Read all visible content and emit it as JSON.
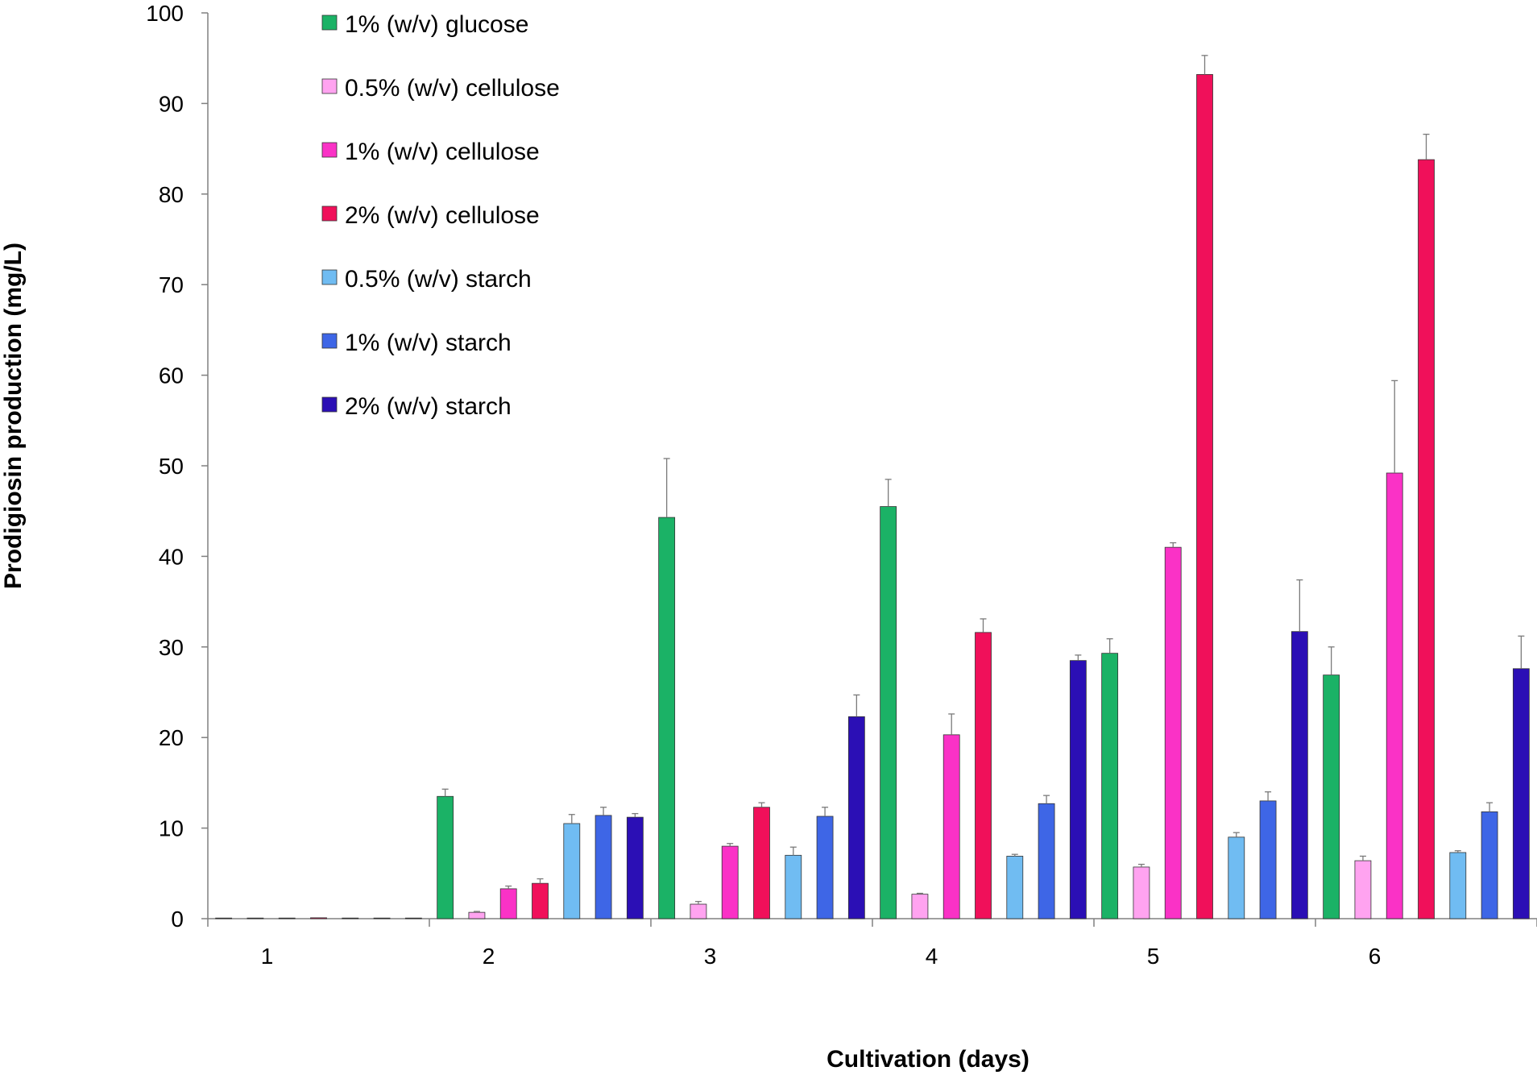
{
  "chart_data": {
    "type": "bar",
    "title": "",
    "xlabel": "Cultivation (days)",
    "ylabel": "Prodigiosin production (mg/L)",
    "ylim": [
      0,
      100
    ],
    "yticks": [
      0,
      10,
      20,
      30,
      40,
      50,
      60,
      70,
      80,
      90,
      100
    ],
    "categories": [
      "1",
      "2",
      "3",
      "4",
      "5",
      "6"
    ],
    "grid": false,
    "legend_position": "top-left",
    "series": [
      {
        "name": "1% (w/v) glucose",
        "color": "#1BB266",
        "values": [
          0,
          13.5,
          44.3,
          45.5,
          29.3,
          26.9
        ],
        "errors": [
          0,
          0.8,
          6.5,
          3.0,
          1.6,
          3.1
        ]
      },
      {
        "name": "0.5% (w/v) cellulose",
        "color": "#FFA3F0",
        "values": [
          0,
          0.7,
          1.6,
          2.7,
          5.7,
          6.4
        ],
        "errors": [
          0,
          0.1,
          0.3,
          0.1,
          0.3,
          0.5
        ]
      },
      {
        "name": "1% (w/v) cellulose",
        "color": "#FA32C6",
        "values": [
          0,
          3.3,
          8.0,
          20.3,
          41.0,
          49.2
        ],
        "errors": [
          0,
          0.3,
          0.3,
          2.3,
          0.5,
          10.2
        ]
      },
      {
        "name": "2% (w/v) cellulose",
        "color": "#F0105A",
        "values": [
          0.1,
          3.9,
          12.3,
          31.6,
          93.2,
          83.8
        ],
        "errors": [
          0,
          0.5,
          0.5,
          1.5,
          2.1,
          2.8
        ]
      },
      {
        "name": "0.5% (w/v) starch",
        "color": "#70BCF2",
        "values": [
          0,
          10.5,
          7.0,
          6.9,
          9.0,
          7.3
        ],
        "errors": [
          0,
          1.0,
          0.9,
          0.2,
          0.5,
          0.2
        ]
      },
      {
        "name": "1% (w/v) starch",
        "color": "#3E66E6",
        "values": [
          0,
          11.4,
          11.3,
          12.7,
          13.0,
          11.8
        ],
        "errors": [
          0,
          0.9,
          1.0,
          0.9,
          1.0,
          1.0
        ]
      },
      {
        "name": "2% (w/v) starch",
        "color": "#2B0FB5",
        "values": [
          0,
          11.2,
          22.3,
          28.5,
          31.7,
          27.6
        ],
        "errors": [
          0,
          0.4,
          2.4,
          0.6,
          5.7,
          3.6
        ]
      }
    ]
  }
}
